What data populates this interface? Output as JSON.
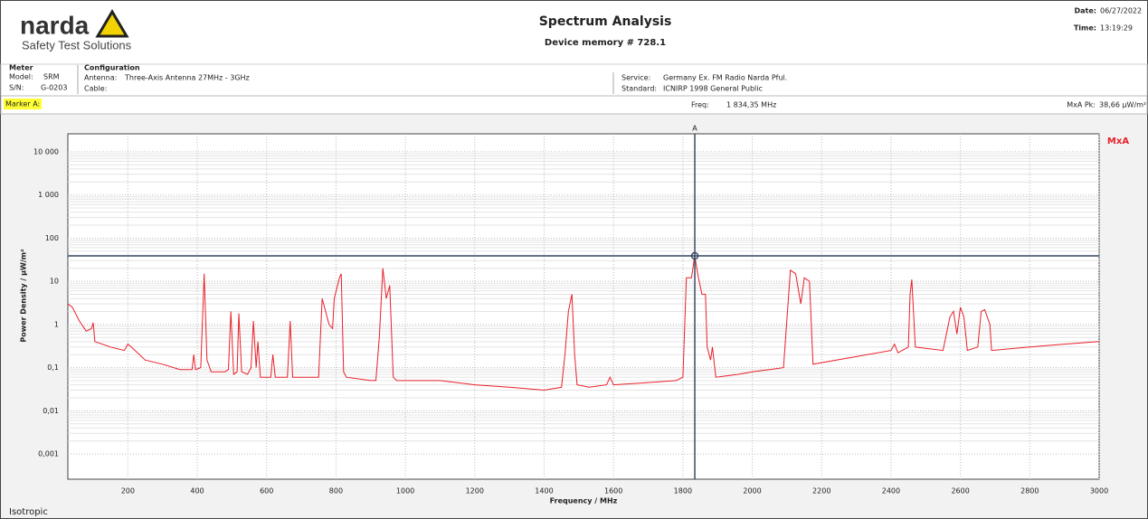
{
  "header": {
    "logo": "narda",
    "tagline": "Safety Test Solutions",
    "title": "Spectrum Analysis",
    "subtitle": "Device memory # 728.1",
    "date_label": "Date:",
    "date": "06/27/2022",
    "time_label": "Time:",
    "time": "13:19:29"
  },
  "info": {
    "meter": "Meter",
    "model_label": "Model:",
    "model": "SRM",
    "sn_label": "S/N:",
    "sn": "G-0203",
    "configuration": "Configuration",
    "antenna_label": "Antenna:",
    "antenna": "Three-Axis Antenna 27MHz - 3GHz",
    "cable_label": "Cable:",
    "service_label": "Service:",
    "service": "Germany Ex. FM Radio Narda Pful.",
    "standard_label": "Standard:",
    "standard": "ICNIRP 1998 General Public"
  },
  "marker_bar": {
    "marker": "Marker A:",
    "freq_label": "Freq:",
    "freq": "1 834,35 MHz",
    "peak_label": "MxA Pk:",
    "peak": "38,66 µW/m²"
  },
  "footer": "Isotropic",
  "chart_data": {
    "type": "line",
    "x_label": "Frequency / MHz",
    "y_label": "Power Density / µW/m²",
    "log_y": true,
    "grid": true,
    "legend": "top-right",
    "xlim": [
      27,
      3000
    ],
    "xticks": [
      200,
      400,
      600,
      800,
      1000,
      1200,
      1400,
      1600,
      1800,
      2000,
      2200,
      2400,
      2600,
      2800,
      3000
    ],
    "ylim": [
      0.00026,
      26000
    ],
    "yticks": [
      {
        "value": 0.001,
        "label": "0,001"
      },
      {
        "value": 0.01,
        "label": "0,01"
      },
      {
        "value": 0.1,
        "label": "0,1"
      },
      1,
      10,
      100,
      {
        "value": 1000,
        "label": "1 000"
      },
      {
        "value": 10000,
        "label": "10 000"
      }
    ],
    "marker": {
      "name": "A",
      "x": 1834.35,
      "y": 38.66
    },
    "x": [
      27,
      40,
      60,
      80,
      95,
      100,
      105,
      150,
      190,
      200,
      210,
      250,
      300,
      350,
      385,
      390,
      395,
      410,
      420,
      428,
      440,
      480,
      490,
      497,
      505,
      515,
      520,
      528,
      545,
      555,
      562,
      570,
      575,
      582,
      600,
      612,
      618,
      625,
      660,
      668,
      675,
      700,
      750,
      760,
      770,
      780,
      790,
      795,
      810,
      815,
      822,
      830,
      900,
      915,
      925,
      935,
      945,
      955,
      965,
      975,
      1100,
      1200,
      1300,
      1400,
      1450,
      1460,
      1470,
      1480,
      1488,
      1495,
      1530,
      1580,
      1590,
      1600,
      1700,
      1780,
      1800,
      1810,
      1825,
      1834,
      1845,
      1855,
      1865,
      1870,
      1880,
      1885,
      1895,
      1960,
      2000,
      2050,
      2090,
      2110,
      2125,
      2140,
      2150,
      2165,
      2175,
      2300,
      2400,
      2410,
      2420,
      2450,
      2455,
      2460,
      2470,
      2550,
      2570,
      2580,
      2590,
      2600,
      2610,
      2620,
      2650,
      2660,
      2670,
      2685,
      2690,
      2800,
      2900,
      3000
    ],
    "series": [
      {
        "name": "MxA",
        "color": "#e8202a",
        "values": [
          3,
          2.5,
          1.2,
          0.7,
          0.8,
          1.1,
          0.4,
          0.3,
          0.25,
          0.35,
          0.3,
          0.15,
          0.12,
          0.09,
          0.09,
          0.2,
          0.09,
          0.1,
          15,
          0.15,
          0.08,
          0.08,
          0.09,
          2,
          0.07,
          0.08,
          1.8,
          0.08,
          0.07,
          0.1,
          1.2,
          0.1,
          0.4,
          0.06,
          0.06,
          0.06,
          0.2,
          0.06,
          0.06,
          1.2,
          0.06,
          0.06,
          0.06,
          4,
          2,
          1,
          0.8,
          4,
          12,
          15,
          0.08,
          0.06,
          0.05,
          0.05,
          0.5,
          20,
          4,
          8,
          0.06,
          0.05,
          0.05,
          0.04,
          0.035,
          0.03,
          0.035,
          0.2,
          2,
          5,
          0.2,
          0.04,
          0.035,
          0.04,
          0.06,
          0.04,
          0.045,
          0.05,
          0.06,
          12,
          12,
          38.66,
          12,
          5,
          5,
          0.3,
          0.15,
          0.3,
          0.06,
          0.07,
          0.08,
          0.09,
          0.1,
          18,
          15,
          3,
          12,
          10,
          0.12,
          0.18,
          0.25,
          0.35,
          0.22,
          0.3,
          5,
          11,
          0.3,
          0.25,
          1.5,
          2,
          0.6,
          2.5,
          1.5,
          0.25,
          0.3,
          2,
          2.2,
          1,
          0.25,
          0.3,
          0.35,
          0.4
        ]
      }
    ]
  }
}
